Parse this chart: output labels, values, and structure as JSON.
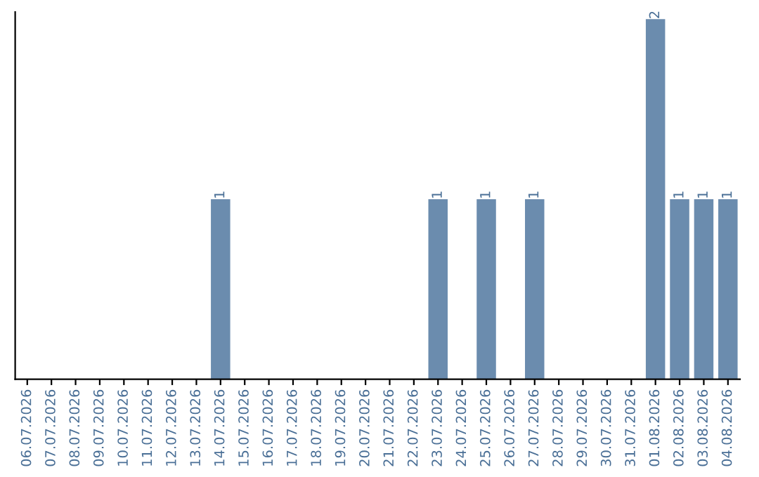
{
  "chart_data": {
    "type": "bar",
    "categories": [
      "06.07.2026",
      "07.07.2026",
      "08.07.2026",
      "09.07.2026",
      "10.07.2026",
      "11.07.2026",
      "12.07.2026",
      "13.07.2026",
      "14.07.2026",
      "15.07.2026",
      "16.07.2026",
      "17.07.2026",
      "18.07.2026",
      "19.07.2026",
      "20.07.2026",
      "21.07.2026",
      "22.07.2026",
      "23.07.2026",
      "24.07.2026",
      "25.07.2026",
      "26.07.2026",
      "27.07.2026",
      "28.07.2026",
      "29.07.2026",
      "30.07.2026",
      "31.07.2026",
      "01.08.2026",
      "02.08.2026",
      "03.08.2026",
      "04.08.2026"
    ],
    "values": [
      0,
      0,
      0,
      0,
      0,
      0,
      0,
      0,
      1,
      0,
      0,
      0,
      0,
      0,
      0,
      0,
      0,
      1,
      0,
      1,
      0,
      1,
      0,
      0,
      0,
      0,
      2,
      1,
      1,
      1
    ],
    "value_labels": [
      null,
      null,
      null,
      null,
      null,
      null,
      null,
      null,
      "1",
      null,
      null,
      null,
      null,
      null,
      null,
      null,
      null,
      "1",
      null,
      "1",
      null,
      "1",
      null,
      null,
      null,
      null,
      "2",
      "1",
      "1",
      "1"
    ],
    "color": "#6b8cae",
    "tick_labels": "x",
    "grid": false,
    "legend": false
  }
}
